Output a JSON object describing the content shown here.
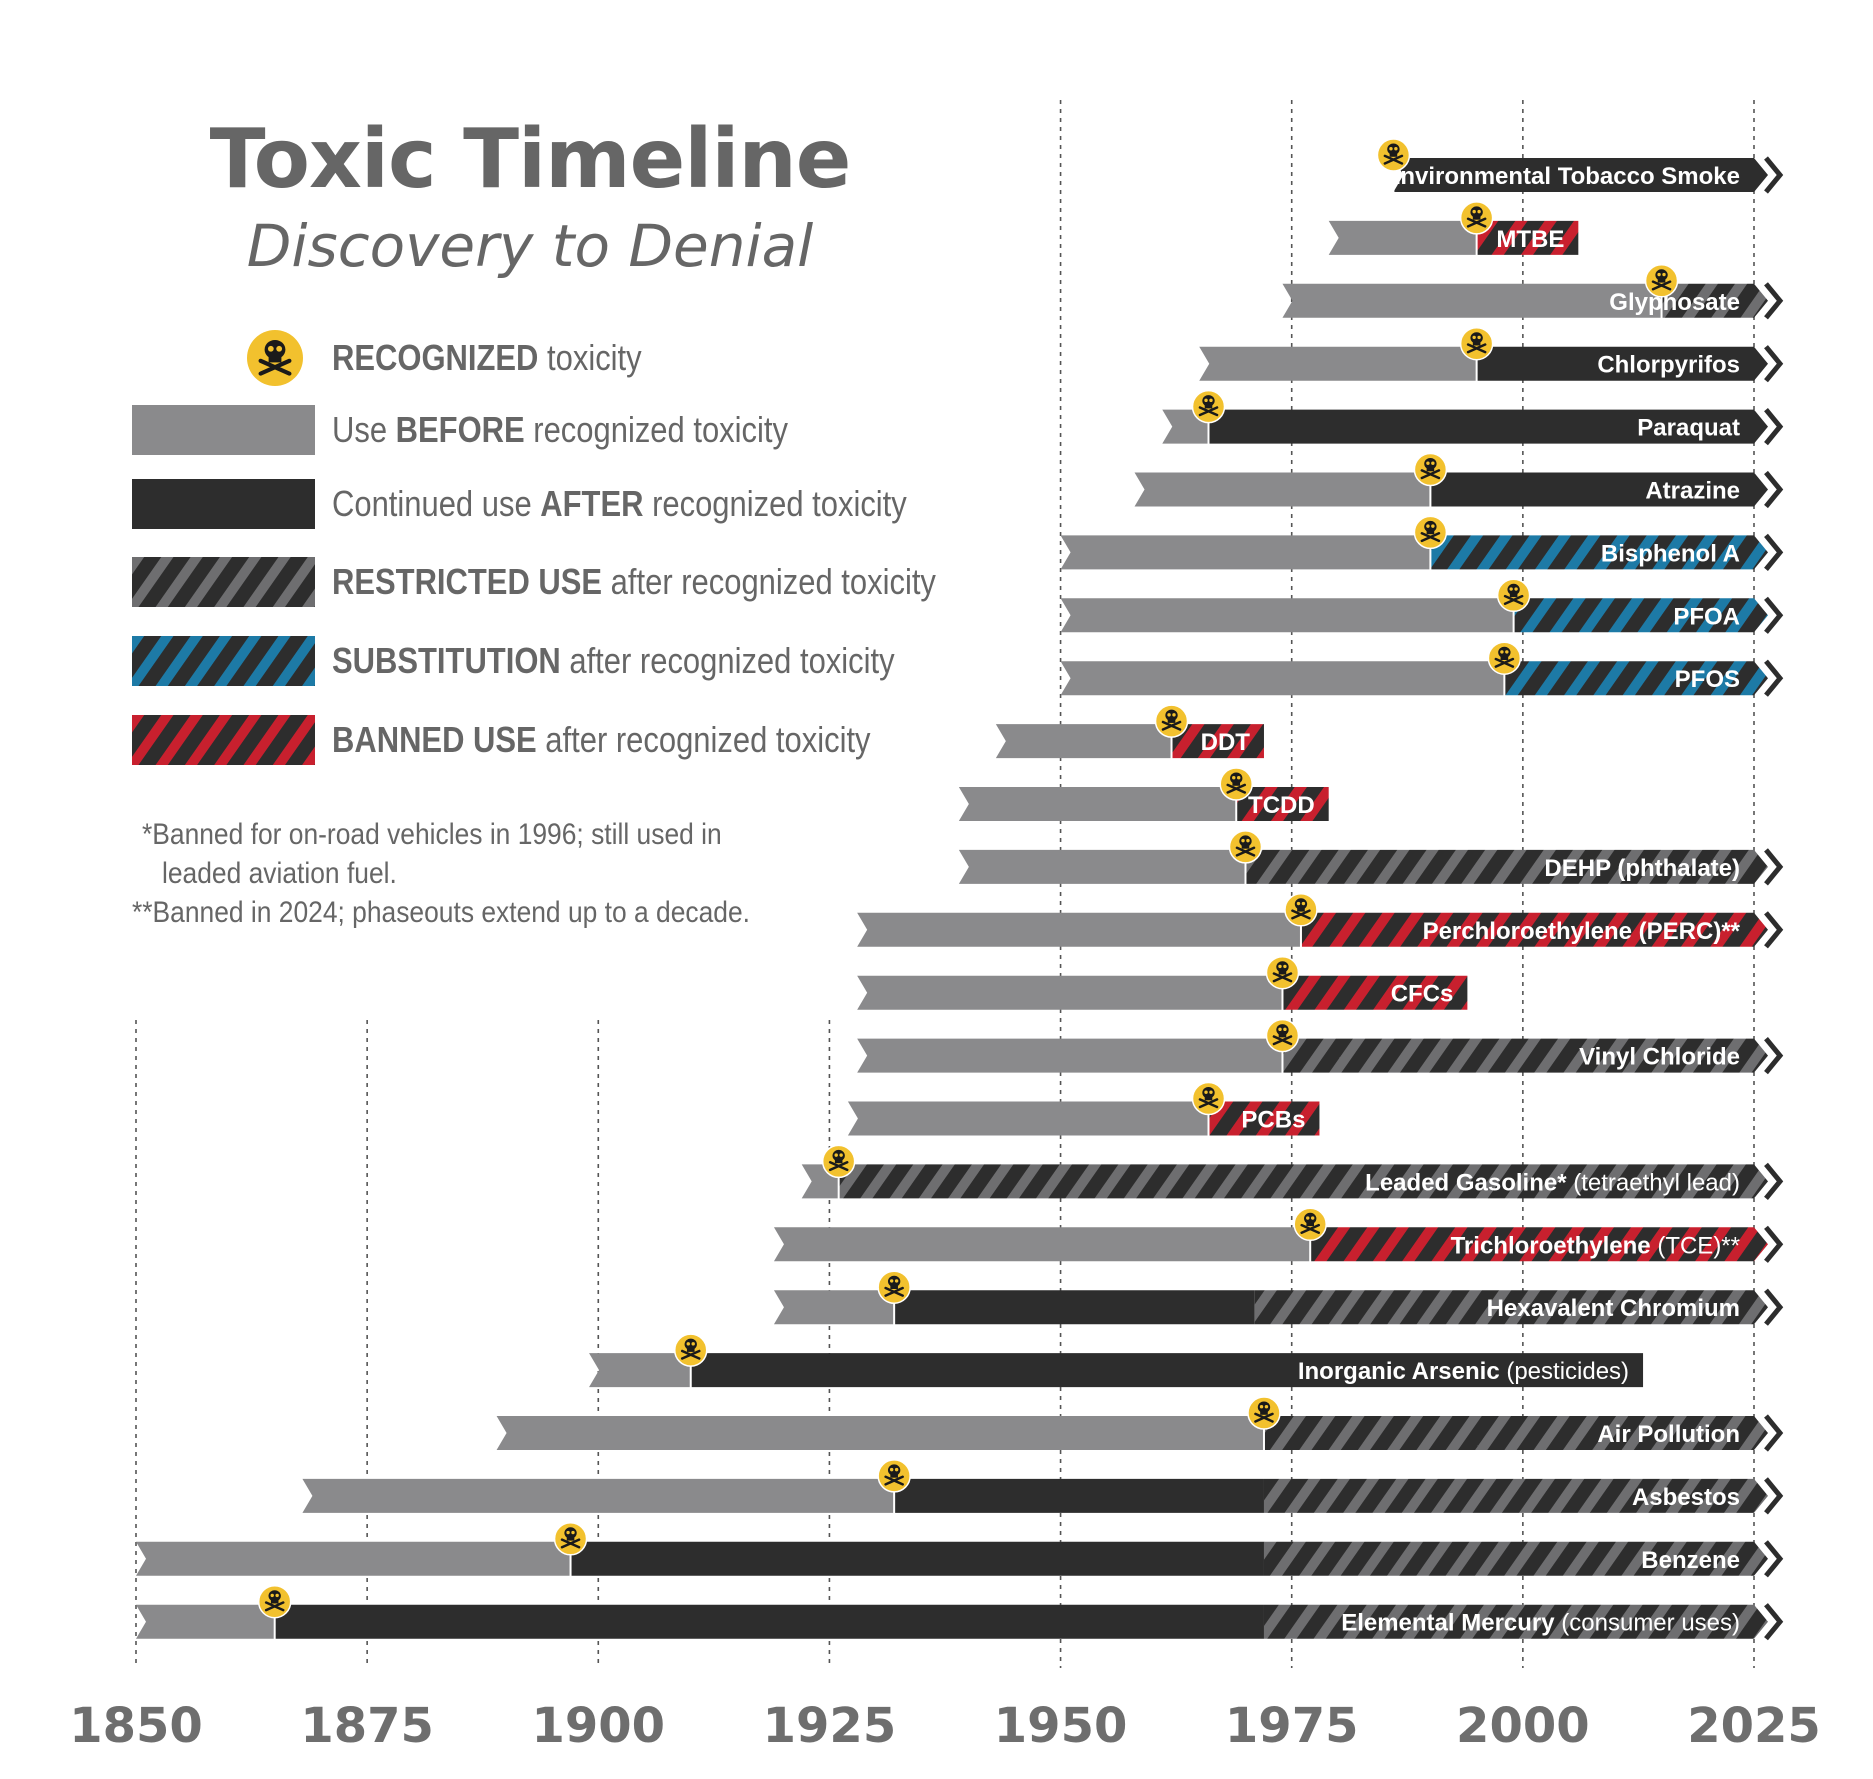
{
  "title": "Toxic Timeline",
  "subtitle": "Discovery to Denial",
  "legend": {
    "recognized": {
      "bold": "RECOGNIZED",
      "rest": " toxicity"
    },
    "before": {
      "pre": "Use ",
      "bold": "BEFORE",
      "rest": " recognized toxicity"
    },
    "after": {
      "pre": "Continued use ",
      "bold": "AFTER",
      "rest": " recognized toxicity"
    },
    "restricted": {
      "bold": "RESTRICTED USE",
      "rest": " after recognized toxicity"
    },
    "substitution": {
      "bold": "SUBSTITUTION",
      "rest": " after recognized toxicity"
    },
    "banned": {
      "bold": "BANNED USE",
      "rest": " after recognized toxicity"
    }
  },
  "notes": {
    "note1_line1": "*Banned for on-road vehicles in 1996; still used in",
    "note1_line2": "leaded aviation fuel.",
    "note2": "**Banned in 2024; phaseouts extend up to a decade."
  },
  "colors": {
    "before": "#8a8a8c",
    "after": "#2d2d2d",
    "restricted_stripe": "#6e6e70",
    "substitution_stripe": "#1d7aa6",
    "banned_stripe": "#c8202e",
    "icon": "#f2c12e",
    "text": "#666666",
    "axis": "#6e6e6e"
  },
  "chart_data": {
    "type": "timeline",
    "xlim": [
      1850,
      2025
    ],
    "xticks": [
      1850,
      1875,
      1900,
      1925,
      1950,
      1975,
      2000,
      2025
    ],
    "ongoing_marker": "arrow",
    "items": [
      {
        "name": "Environmental Tobacco Smoke",
        "suffix": "",
        "start": 1986,
        "recognized": 1986,
        "segments": [
          {
            "type": "after",
            "from": 1986,
            "to": 2025
          }
        ],
        "ongoing": true
      },
      {
        "name": "MTBE",
        "suffix": "",
        "start": 1979,
        "recognized": 1995,
        "segments": [
          {
            "type": "before",
            "from": 1979,
            "to": 1995
          },
          {
            "type": "banned",
            "from": 1995,
            "to": 2006
          }
        ],
        "ongoing": false
      },
      {
        "name": "Glyphosate",
        "suffix": "",
        "start": 1974,
        "recognized": 2015,
        "segments": [
          {
            "type": "before",
            "from": 1974,
            "to": 2015
          },
          {
            "type": "restricted",
            "from": 2015,
            "to": 2025
          }
        ],
        "ongoing": true
      },
      {
        "name": "Chlorpyrifos",
        "suffix": "",
        "start": 1965,
        "recognized": 1995,
        "segments": [
          {
            "type": "before",
            "from": 1965,
            "to": 1995
          },
          {
            "type": "after",
            "from": 1995,
            "to": 2025
          }
        ],
        "ongoing": true
      },
      {
        "name": "Paraquat",
        "suffix": "",
        "start": 1961,
        "recognized": 1966,
        "segments": [
          {
            "type": "before",
            "from": 1961,
            "to": 1966
          },
          {
            "type": "after",
            "from": 1966,
            "to": 2025
          }
        ],
        "ongoing": true
      },
      {
        "name": "Atrazine",
        "suffix": "",
        "start": 1958,
        "recognized": 1990,
        "segments": [
          {
            "type": "before",
            "from": 1958,
            "to": 1990
          },
          {
            "type": "after",
            "from": 1990,
            "to": 2025
          }
        ],
        "ongoing": true
      },
      {
        "name": "Bisphenol A",
        "suffix": "",
        "start": 1950,
        "recognized": 1990,
        "segments": [
          {
            "type": "before",
            "from": 1950,
            "to": 1990
          },
          {
            "type": "substitution",
            "from": 1990,
            "to": 2025
          }
        ],
        "ongoing": true
      },
      {
        "name": "PFOA",
        "suffix": "",
        "start": 1950,
        "recognized": 1999,
        "segments": [
          {
            "type": "before",
            "from": 1950,
            "to": 1999
          },
          {
            "type": "substitution",
            "from": 1999,
            "to": 2025
          }
        ],
        "ongoing": true
      },
      {
        "name": "PFOS",
        "suffix": "",
        "start": 1950,
        "recognized": 1998,
        "segments": [
          {
            "type": "before",
            "from": 1950,
            "to": 1998
          },
          {
            "type": "substitution",
            "from": 1998,
            "to": 2025
          }
        ],
        "ongoing": true
      },
      {
        "name": "DDT",
        "suffix": "",
        "start": 1943,
        "recognized": 1962,
        "segments": [
          {
            "type": "before",
            "from": 1943,
            "to": 1962
          },
          {
            "type": "banned",
            "from": 1962,
            "to": 1972
          }
        ],
        "ongoing": false
      },
      {
        "name": "TCDD",
        "suffix": "",
        "start": 1939,
        "recognized": 1969,
        "segments": [
          {
            "type": "before",
            "from": 1939,
            "to": 1969
          },
          {
            "type": "banned",
            "from": 1969,
            "to": 1979
          }
        ],
        "ongoing": false
      },
      {
        "name": "DEHP (phthalate)",
        "suffix": "",
        "start": 1939,
        "recognized": 1970,
        "segments": [
          {
            "type": "before",
            "from": 1939,
            "to": 1970
          },
          {
            "type": "restricted",
            "from": 1970,
            "to": 2025
          }
        ],
        "ongoing": true
      },
      {
        "name": "Perchloroethylene (PERC)**",
        "suffix": "",
        "start": 1928,
        "recognized": 1976,
        "segments": [
          {
            "type": "before",
            "from": 1928,
            "to": 1976
          },
          {
            "type": "banned",
            "from": 1976,
            "to": 2025
          }
        ],
        "ongoing": true
      },
      {
        "name": "CFCs",
        "suffix": "",
        "start": 1928,
        "recognized": 1974,
        "segments": [
          {
            "type": "before",
            "from": 1928,
            "to": 1974
          },
          {
            "type": "banned",
            "from": 1974,
            "to": 1994
          }
        ],
        "ongoing": false
      },
      {
        "name": "Vinyl Chloride",
        "suffix": "",
        "start": 1928,
        "recognized": 1974,
        "segments": [
          {
            "type": "before",
            "from": 1928,
            "to": 1974
          },
          {
            "type": "restricted",
            "from": 1974,
            "to": 2025
          }
        ],
        "ongoing": true
      },
      {
        "name": "PCBs",
        "suffix": "",
        "start": 1927,
        "recognized": 1966,
        "segments": [
          {
            "type": "before",
            "from": 1927,
            "to": 1966
          },
          {
            "type": "banned",
            "from": 1966,
            "to": 1978
          }
        ],
        "ongoing": false
      },
      {
        "name": "Leaded Gasoline*",
        "suffix": " (tetraethyl lead)",
        "start": 1922,
        "recognized": 1926,
        "segments": [
          {
            "type": "before",
            "from": 1922,
            "to": 1926
          },
          {
            "type": "restricted",
            "from": 1926,
            "to": 2025
          }
        ],
        "ongoing": true
      },
      {
        "name": "Trichloroethylene",
        "suffix": " (TCE)**",
        "start": 1919,
        "recognized": 1977,
        "segments": [
          {
            "type": "before",
            "from": 1919,
            "to": 1977
          },
          {
            "type": "banned",
            "from": 1977,
            "to": 2025
          }
        ],
        "ongoing": true
      },
      {
        "name": "Hexavalent Chromium",
        "suffix": "",
        "start": 1919,
        "recognized": 1932,
        "segments": [
          {
            "type": "before",
            "from": 1919,
            "to": 1932
          },
          {
            "type": "after",
            "from": 1932,
            "to": 1971
          },
          {
            "type": "restricted",
            "from": 1971,
            "to": 2025
          }
        ],
        "ongoing": true
      },
      {
        "name": "Inorganic Arsenic",
        "suffix": " (pesticides)",
        "start": 1899,
        "recognized": 1910,
        "segments": [
          {
            "type": "before",
            "from": 1899,
            "to": 1910
          },
          {
            "type": "after",
            "from": 1910,
            "to": 2013
          }
        ],
        "ongoing": false
      },
      {
        "name": "Air Pollution",
        "suffix": "",
        "start": 1889,
        "recognized": 1972,
        "segments": [
          {
            "type": "before",
            "from": 1889,
            "to": 1972
          },
          {
            "type": "restricted",
            "from": 1972,
            "to": 2025
          }
        ],
        "ongoing": true
      },
      {
        "name": "Asbestos",
        "suffix": "",
        "start": 1868,
        "recognized": 1932,
        "segments": [
          {
            "type": "before",
            "from": 1868,
            "to": 1932
          },
          {
            "type": "after",
            "from": 1932,
            "to": 1972
          },
          {
            "type": "restricted",
            "from": 1972,
            "to": 2025
          }
        ],
        "ongoing": true
      },
      {
        "name": "Benzene",
        "suffix": "",
        "start": 1850,
        "recognized": 1897,
        "segments": [
          {
            "type": "before",
            "from": 1850,
            "to": 1897
          },
          {
            "type": "after",
            "from": 1897,
            "to": 1972
          },
          {
            "type": "restricted",
            "from": 1972,
            "to": 2025
          }
        ],
        "ongoing": true
      },
      {
        "name": "Elemental Mercury",
        "suffix": " (consumer uses)",
        "start": 1850,
        "recognized": 1865,
        "segments": [
          {
            "type": "before",
            "from": 1850,
            "to": 1865
          },
          {
            "type": "after",
            "from": 1865,
            "to": 1972
          },
          {
            "type": "restricted",
            "from": 1972,
            "to": 2025
          }
        ],
        "ongoing": true
      }
    ]
  }
}
